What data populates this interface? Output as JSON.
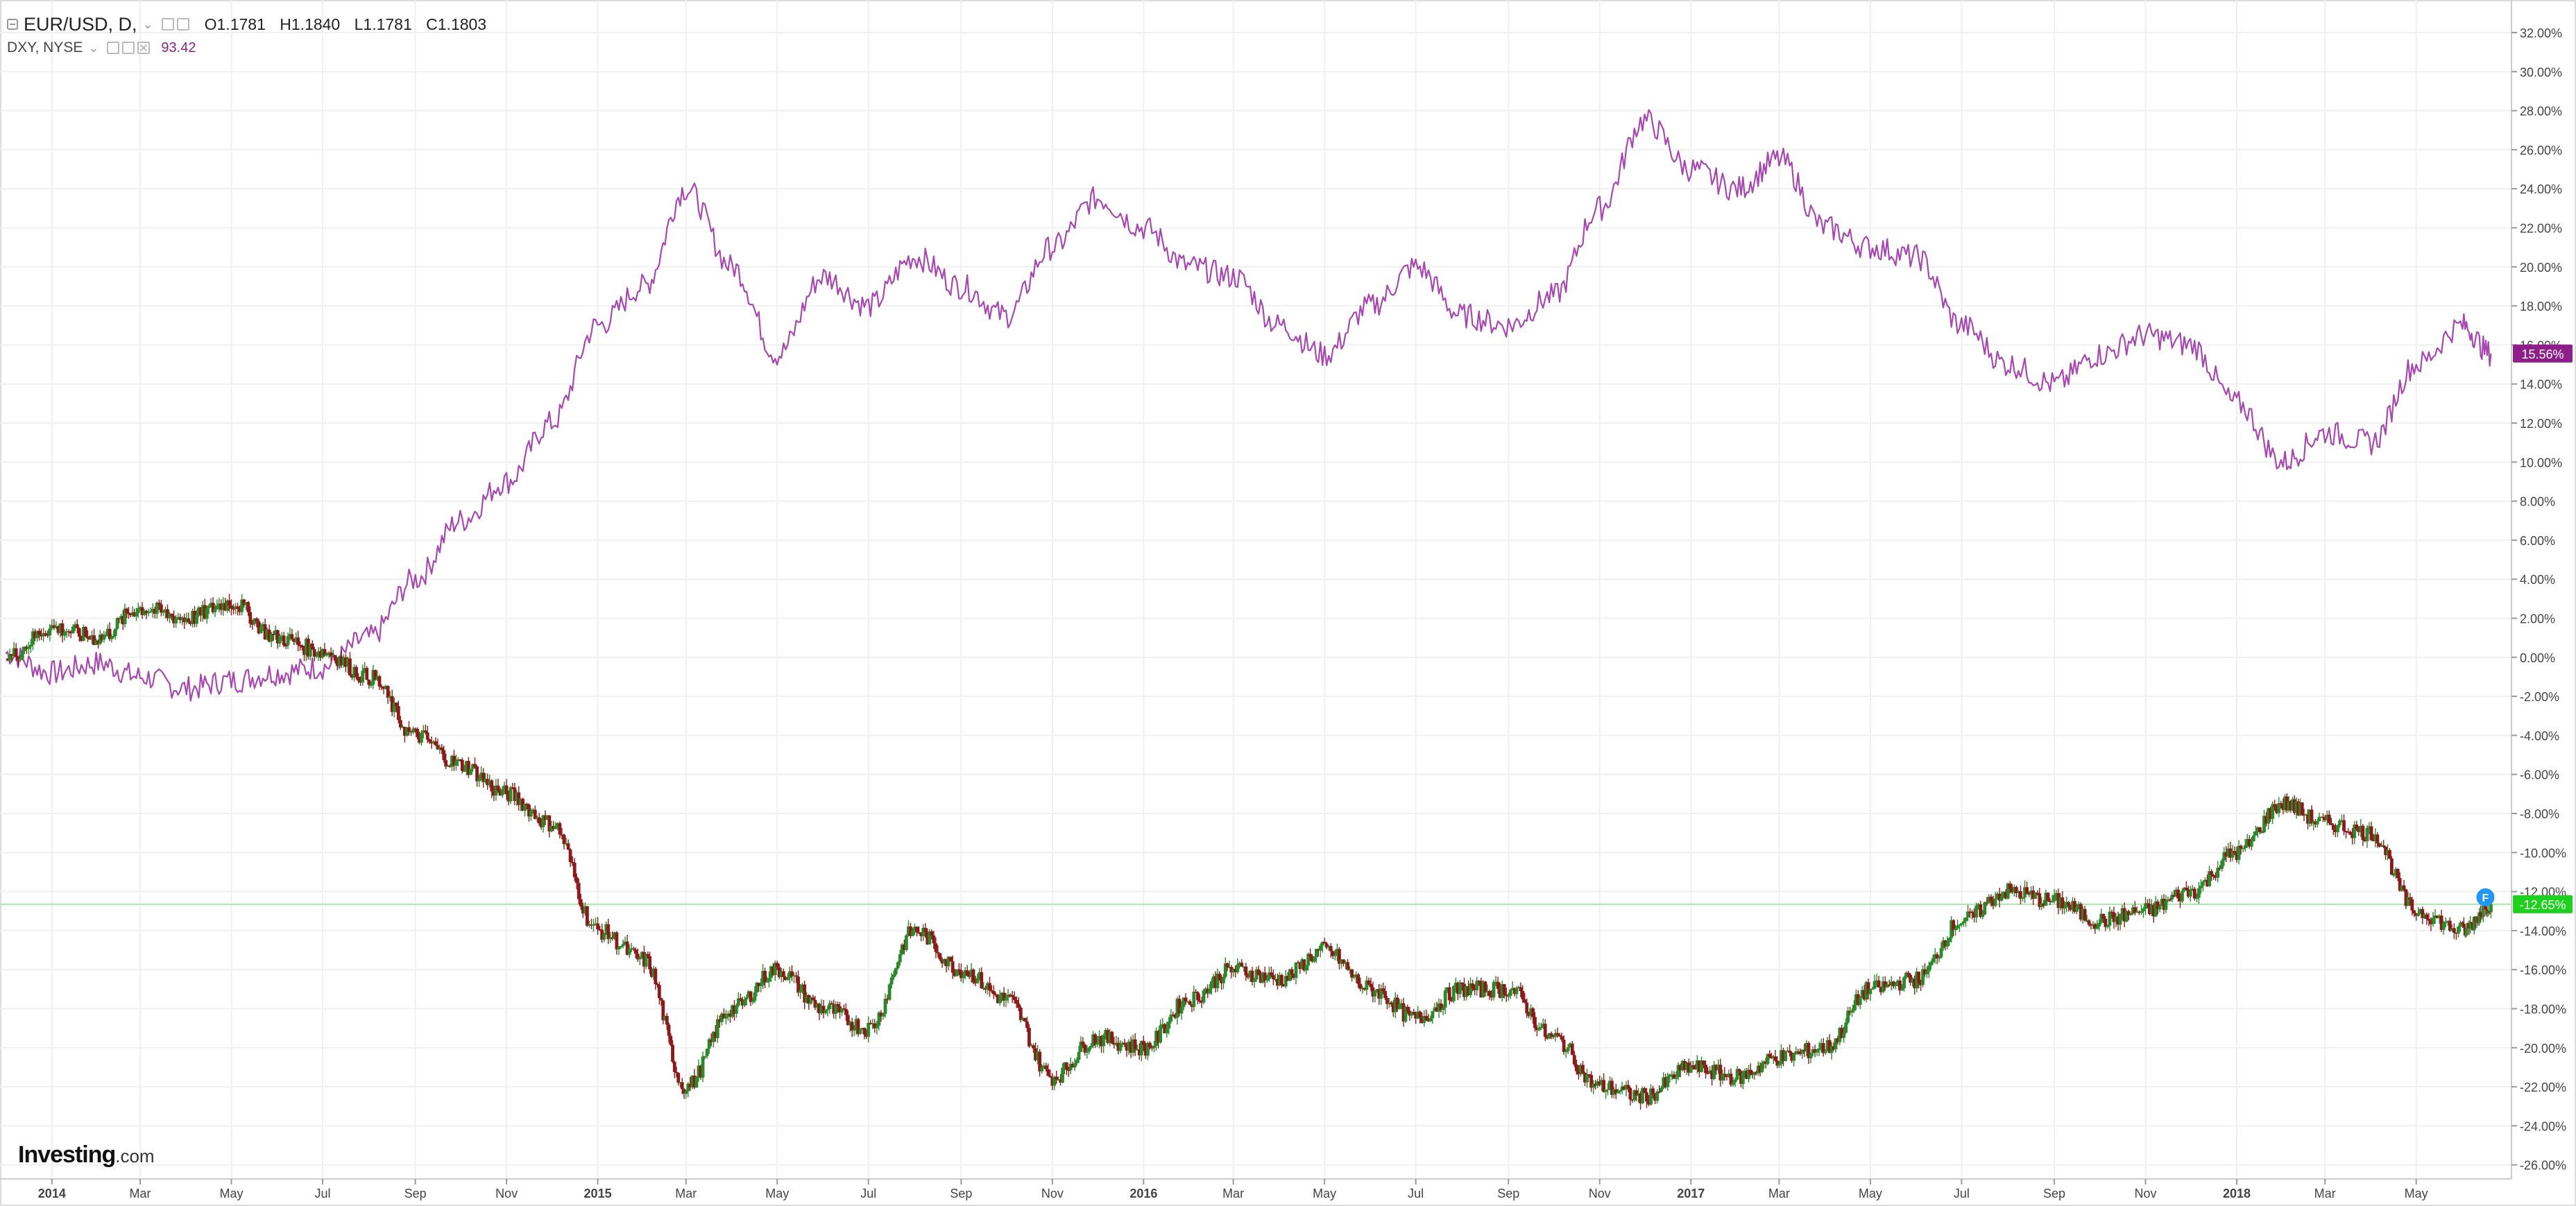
{
  "legend": {
    "main_symbol": "EUR/USD, D,",
    "ohlc": {
      "open": "O1.1781",
      "high": "H1.1840",
      "low": "L1.1781",
      "close": "C1.1803"
    },
    "compare_symbol": "DXY, NYSE",
    "compare_value": "93.42"
  },
  "logo": {
    "brand": "Investing",
    "suffix": ".com"
  },
  "colors": {
    "eurusd_up": "#2a8a2a",
    "eurusd_down": "#8b1a1a",
    "dxy_line": "#a648b0",
    "dxy_badge": "#8e1f8a",
    "eurusd_badge": "#1fd11f",
    "price_line": "#a9e8a9",
    "grid": "#f0f0f0",
    "axis_text": "#444444",
    "flag_badge": "#2196f3"
  },
  "chart_data": {
    "type": "line",
    "y_unit": "percent change",
    "ylim": [
      -26,
      32
    ],
    "y_ticks": [
      "32.00%",
      "30.00%",
      "28.00%",
      "26.00%",
      "24.00%",
      "22.00%",
      "20.00%",
      "18.00%",
      "16.00%",
      "14.00%",
      "12.00%",
      "10.00%",
      "8.00%",
      "6.00%",
      "4.00%",
      "2.00%",
      "0.00%",
      "-2.00%",
      "-4.00%",
      "-6.00%",
      "-8.00%",
      "-10.00%",
      "-12.00%",
      "-14.00%",
      "-16.00%",
      "-18.00%",
      "-20.00%",
      "-22.00%",
      "-24.00%",
      "-26.00%"
    ],
    "x_ticks": [
      "2014",
      "Mar",
      "May",
      "Jul",
      "Sep",
      "Nov",
      "2015",
      "Mar",
      "May",
      "Jul",
      "Sep",
      "Nov",
      "2016",
      "Mar",
      "May",
      "Jul",
      "Sep",
      "Nov",
      "2017",
      "Mar",
      "May",
      "Jul",
      "Sep",
      "Nov",
      "2018",
      "Mar",
      "May"
    ],
    "x_range": [
      "2013-12-01",
      "2018-06-30"
    ],
    "grid": true,
    "current_labels": {
      "dxy": "15.56%",
      "eurusd": "-12.65%"
    },
    "flag_marker": "F",
    "series": [
      {
        "name": "DXY, NYSE",
        "style": "line",
        "x": [
          "2013-12-01",
          "2014-01-01",
          "2014-02-01",
          "2014-03-01",
          "2014-04-01",
          "2014-05-01",
          "2014-06-01",
          "2014-07-01",
          "2014-08-01",
          "2014-09-01",
          "2014-10-01",
          "2014-11-01",
          "2014-12-01",
          "2015-01-01",
          "2015-02-01",
          "2015-03-01",
          "2015-04-01",
          "2015-05-01",
          "2015-06-01",
          "2015-07-01",
          "2015-08-01",
          "2015-09-01",
          "2015-10-01",
          "2015-11-01",
          "2015-12-01",
          "2016-01-01",
          "2016-02-01",
          "2016-03-01",
          "2016-04-01",
          "2016-05-01",
          "2016-06-01",
          "2016-07-01",
          "2016-08-01",
          "2016-09-01",
          "2016-10-01",
          "2016-11-01",
          "2016-12-01",
          "2017-01-01",
          "2017-02-01",
          "2017-03-01",
          "2017-04-01",
          "2017-05-01",
          "2017-06-01",
          "2017-07-01",
          "2017-08-01",
          "2017-09-01",
          "2017-10-01",
          "2017-11-01",
          "2017-12-01",
          "2018-01-01",
          "2018-02-01",
          "2018-03-01",
          "2018-04-01",
          "2018-05-01",
          "2018-06-01",
          "2018-06-20"
        ],
        "y": [
          0.2,
          -0.8,
          -0.3,
          -1.0,
          -1.6,
          -1.2,
          -0.8,
          -0.5,
          1.0,
          4.0,
          7.0,
          9.0,
          12.0,
          17.0,
          19.0,
          24.0,
          20.0,
          15.5,
          19.5,
          18.0,
          20.5,
          19.0,
          17.5,
          21.0,
          23.5,
          22.0,
          20.0,
          19.5,
          17.0,
          15.5,
          18.0,
          20.0,
          17.5,
          17.0,
          18.5,
          23.0,
          27.5,
          25.0,
          24.0,
          25.5,
          22.0,
          21.0,
          20.5,
          17.0,
          15.0,
          14.0,
          15.5,
          16.5,
          16.0,
          13.0,
          10.0,
          11.5,
          11.0,
          15.0,
          17.0,
          15.56
        ]
      },
      {
        "name": "EUR/USD, D",
        "style": "candles",
        "x": [
          "2013-12-01",
          "2014-01-01",
          "2014-02-01",
          "2014-03-01",
          "2014-04-01",
          "2014-05-01",
          "2014-06-01",
          "2014-07-01",
          "2014-08-01",
          "2014-09-01",
          "2014-10-01",
          "2014-11-01",
          "2014-12-01",
          "2015-01-01",
          "2015-02-01",
          "2015-03-01",
          "2015-04-01",
          "2015-05-01",
          "2015-06-01",
          "2015-07-01",
          "2015-08-01",
          "2015-09-01",
          "2015-10-01",
          "2015-11-01",
          "2015-12-01",
          "2016-01-01",
          "2016-02-01",
          "2016-03-01",
          "2016-04-01",
          "2016-05-01",
          "2016-06-01",
          "2016-07-01",
          "2016-08-01",
          "2016-09-01",
          "2016-10-01",
          "2016-11-01",
          "2016-12-01",
          "2017-01-01",
          "2017-02-01",
          "2017-03-01",
          "2017-04-01",
          "2017-05-01",
          "2017-06-01",
          "2017-07-01",
          "2017-08-01",
          "2017-09-01",
          "2017-10-01",
          "2017-11-01",
          "2017-12-01",
          "2018-01-01",
          "2018-02-01",
          "2018-03-01",
          "2018-04-01",
          "2018-05-01",
          "2018-06-01",
          "2018-06-20"
        ],
        "y": [
          0.0,
          1.5,
          1.0,
          2.5,
          2.0,
          2.8,
          1.0,
          0.3,
          -1.0,
          -4.0,
          -5.5,
          -7.0,
          -8.5,
          -14.0,
          -15.5,
          -22.0,
          -18.0,
          -16.0,
          -18.0,
          -19.0,
          -14.0,
          -16.0,
          -17.5,
          -21.5,
          -19.5,
          -20.0,
          -17.5,
          -16.0,
          -16.5,
          -15.0,
          -17.0,
          -18.5,
          -17.0,
          -17.0,
          -19.5,
          -22.0,
          -22.5,
          -21.0,
          -21.5,
          -20.5,
          -20.0,
          -17.0,
          -16.5,
          -13.5,
          -12.0,
          -12.5,
          -13.5,
          -13.0,
          -12.0,
          -10.0,
          -7.5,
          -8.5,
          -9.0,
          -13.0,
          -14.0,
          -12.65
        ]
      }
    ]
  }
}
